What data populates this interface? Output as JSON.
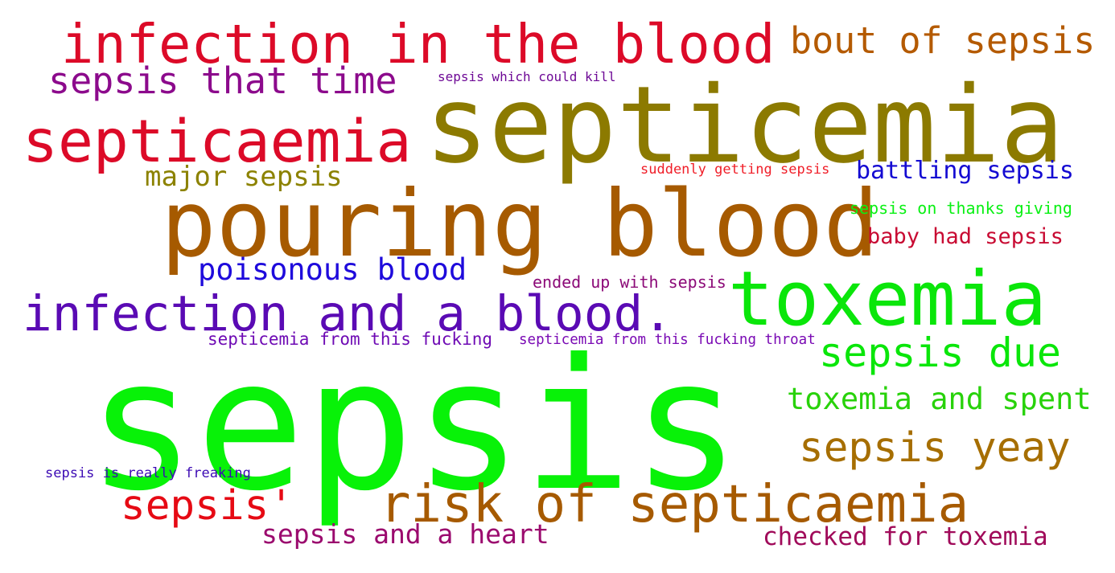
{
  "words": [
    {
      "text": "sepsis",
      "color": "#08f208"
    },
    {
      "text": "septicemia",
      "color": "#8c7a00"
    },
    {
      "text": "pouring blood",
      "color": "#a65a00"
    },
    {
      "text": "infection in the blood",
      "color": "#dc0a28"
    },
    {
      "text": "toxemia",
      "color": "#0ae60a"
    },
    {
      "text": "septicaemia",
      "color": "#dc0a28"
    },
    {
      "text": "infection and a blood.",
      "color": "#5a0ab4"
    },
    {
      "text": "risk of septicaemia",
      "color": "#a65a00"
    },
    {
      "text": "sepsis that time",
      "color": "#8c0a8c"
    },
    {
      "text": "bout of sepsis",
      "color": "#b45a00"
    },
    {
      "text": "sepsis due",
      "color": "#0ae60a"
    },
    {
      "text": "sepsis yeay",
      "color": "#a66e00"
    },
    {
      "text": "sepsis'",
      "color": "#e60a14"
    },
    {
      "text": "toxemia and spent",
      "color": "#28d20a"
    },
    {
      "text": "poisonous blood",
      "color": "#1e0adc"
    },
    {
      "text": "major sepsis",
      "color": "#8c8200"
    },
    {
      "text": "sepsis and a heart",
      "color": "#9b0a6e"
    },
    {
      "text": "checked for toxemia",
      "color": "#a00a5a"
    },
    {
      "text": "battling sepsis",
      "color": "#140ad2"
    },
    {
      "text": "baby had sepsis",
      "color": "#c80a32"
    },
    {
      "text": "sepsis on thanks giving",
      "color": "#0af014"
    },
    {
      "text": "ended up with sepsis",
      "color": "#8c0a78"
    },
    {
      "text": "septicemia from this fucking",
      "color": "#6e0ab4"
    },
    {
      "text": "septicemia from this fucking throat",
      "color": "#7a0ab4"
    },
    {
      "text": "suddenly getting sepsis",
      "color": "#f01e28"
    },
    {
      "text": "sepsis which could kill",
      "color": "#6e0a96"
    },
    {
      "text": "sepsis is really freaking",
      "color": "#3c0ab4"
    }
  ]
}
